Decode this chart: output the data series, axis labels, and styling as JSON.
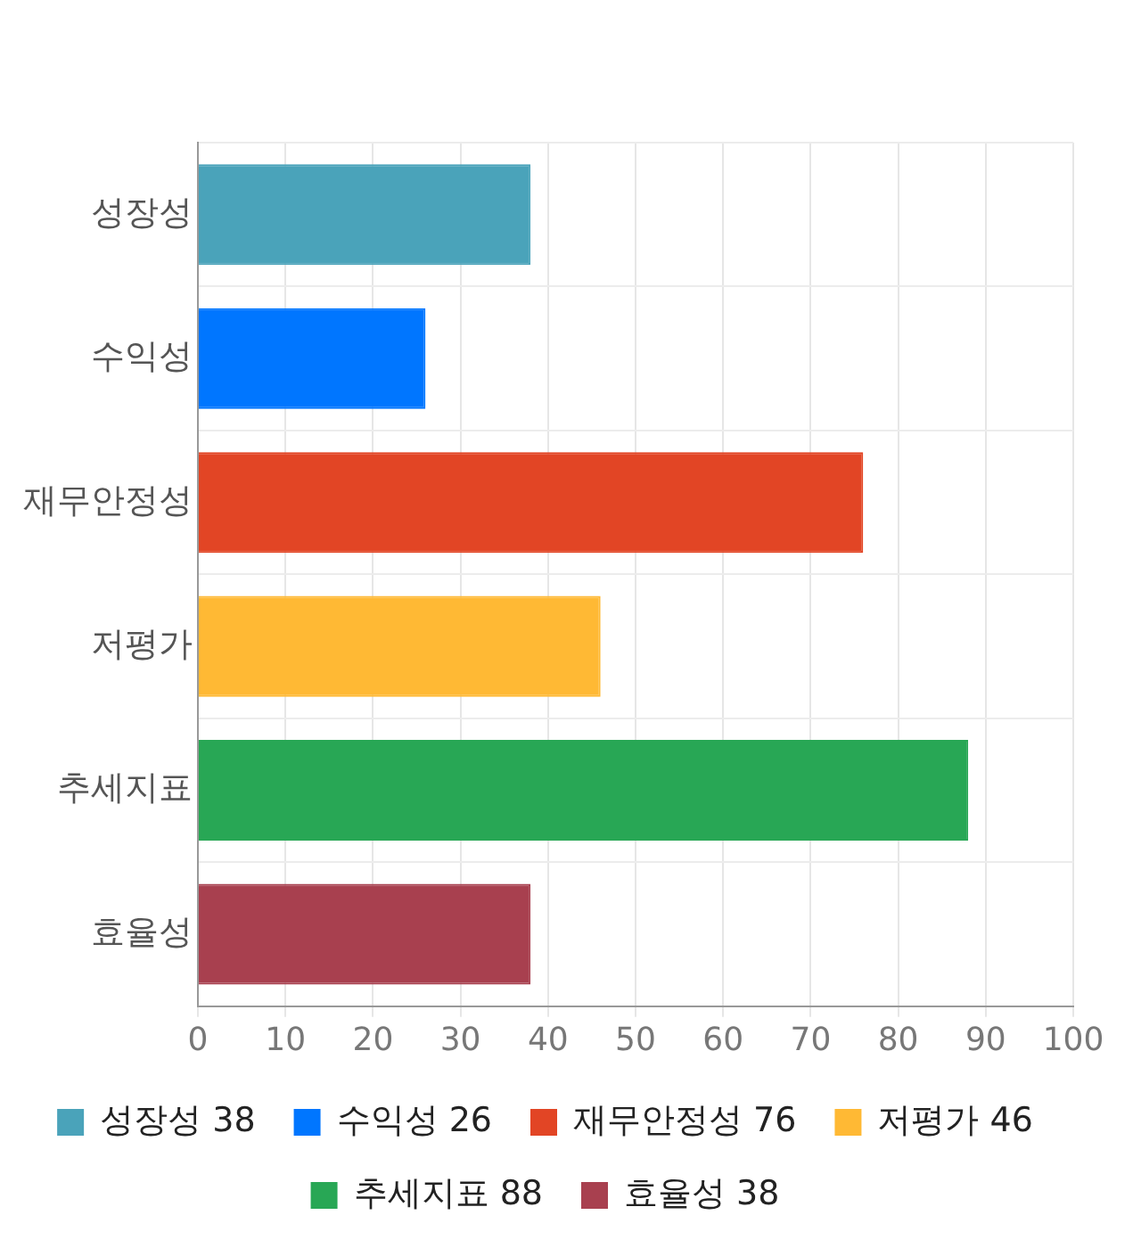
{
  "chart_data": {
    "type": "bar",
    "orientation": "horizontal",
    "stacked": true,
    "categories": [
      "성장성",
      "수익성",
      "재무안정성",
      "저평가",
      "추세지표",
      "효율성"
    ],
    "series": [
      {
        "name": "성장성 38",
        "color": "#4aa3ba",
        "values": [
          38,
          null,
          null,
          null,
          null,
          null
        ]
      },
      {
        "name": "수익성 26",
        "color": "#0076ff",
        "values": [
          null,
          26,
          null,
          null,
          null,
          null
        ]
      },
      {
        "name": "재무안정성 76",
        "color": "#e24525",
        "values": [
          null,
          null,
          76,
          null,
          null,
          null
        ]
      },
      {
        "name": "저평가 46",
        "color": "#ffb934",
        "values": [
          null,
          null,
          null,
          46,
          null,
          null
        ]
      },
      {
        "name": "추세지표 88",
        "color": "#28a755",
        "values": [
          null,
          null,
          null,
          null,
          88,
          null
        ]
      },
      {
        "name": "효율성 38",
        "color": "#a8404f",
        "values": [
          null,
          null,
          null,
          null,
          null,
          38
        ]
      }
    ],
    "xlim": [
      0,
      100
    ],
    "xticks": [
      0,
      10,
      20,
      30,
      40,
      50,
      60,
      70,
      80,
      90,
      100
    ],
    "grid": true,
    "legend": "bottom"
  }
}
